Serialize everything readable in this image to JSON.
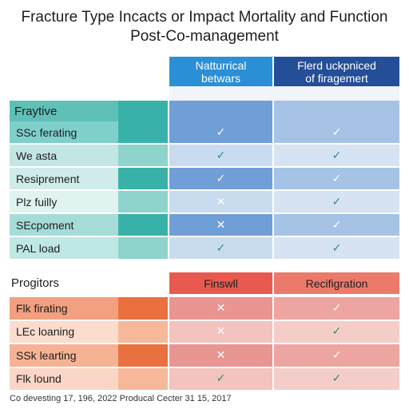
{
  "chart_data": {
    "type": "table",
    "title": "Fracture Type Incacts or Impact Mortality and Function",
    "subtitle": "Post-Co-management",
    "footnote": "Co devesting 17, 196, 2022 Producal Cecter 31 15, 2017",
    "sections": [
      {
        "name": "Fraytive",
        "columns": [
          "Natturrical\nbetwars",
          "Flerd uckpniced\nof firagemert"
        ],
        "header_colors": [
          "#2b8fd6",
          "#244f98"
        ],
        "rows": [
          {
            "label": "SSc ferating",
            "values": [
              "check",
              "check"
            ]
          },
          {
            "label": "We asta",
            "values": [
              "check",
              "check"
            ]
          },
          {
            "label": "Resiprement",
            "values": [
              "check",
              "check"
            ]
          },
          {
            "label": "Plz fuilly",
            "values": [
              "cross",
              "check"
            ]
          },
          {
            "label": "SEcpoment",
            "values": [
              "cross",
              "check"
            ]
          },
          {
            "label": "PAL load",
            "values": [
              "check",
              "check"
            ]
          }
        ]
      },
      {
        "name": "Progitors",
        "columns": [
          "Finswll",
          "Recifigration"
        ],
        "header_colors": [
          "#e85a4f",
          "#ec7a6a"
        ],
        "rows": [
          {
            "label": "Flk firating",
            "values": [
              "cross",
              "check"
            ]
          },
          {
            "label": "LEc loaning",
            "values": [
              "cross",
              "check"
            ]
          },
          {
            "label": "SSk learting",
            "values": [
              "cross",
              "check"
            ]
          },
          {
            "label": "Flk lound",
            "values": [
              "check",
              "check"
            ]
          }
        ]
      }
    ]
  }
}
